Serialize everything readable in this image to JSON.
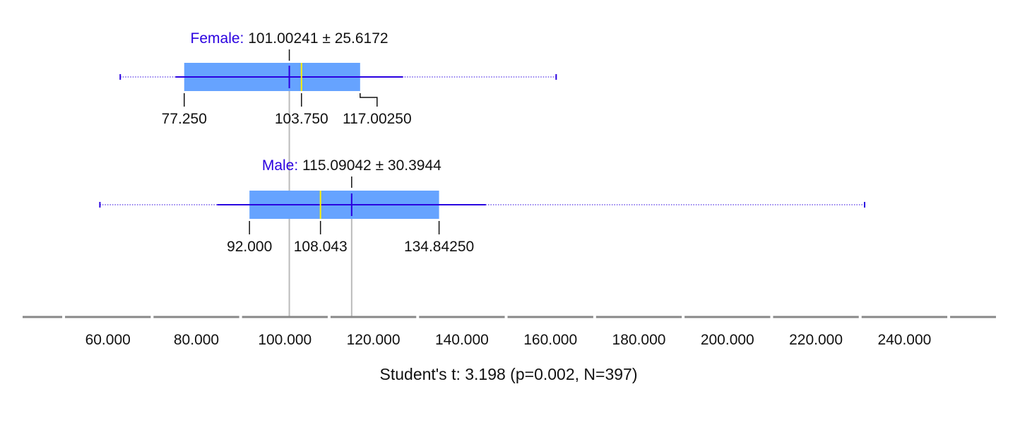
{
  "chart_data": {
    "type": "boxplot",
    "orientation": "horizontal",
    "colors": {
      "box": "#66A3FF",
      "whisker": "#2A00E0",
      "median": "#FFF000",
      "mean": "#2A00E0",
      "label": "#2A00E0",
      "mean_line": "#BBBBBB",
      "axis": "#888888",
      "text": "#111111"
    },
    "groups": [
      {
        "name": "Female:",
        "mean_sd_text": "101.00241 ± 25.6172",
        "mean": 101.00241,
        "median": 103.75,
        "q1": 77.25,
        "q3": 117.0025,
        "whisker_low": 75.3,
        "whisker_high": 126.7,
        "min": 62.8,
        "max": 161.3,
        "q1_label": "77.250",
        "median_label": "103.750",
        "q3_label": "117.00250"
      },
      {
        "name": "Male:",
        "mean_sd_text": "115.09042 ± 30.3944",
        "mean": 115.09042,
        "median": 108.043,
        "q1": 92.0,
        "q3": 134.8425,
        "whisker_low": 84.7,
        "whisker_high": 145.4,
        "min": 58.2,
        "max": 231.0,
        "q1_label": "92.000",
        "median_label": "108.043",
        "q3_label": "134.84250"
      }
    ],
    "x_ticks": [
      "60.000",
      "80.000",
      "100.000",
      "120.000",
      "140.000",
      "160.000",
      "180.000",
      "200.000",
      "220.000",
      "240.000"
    ],
    "x_tick_values": [
      60,
      80,
      100,
      120,
      140,
      160,
      180,
      200,
      220,
      240
    ],
    "xlim": [
      40,
      260
    ],
    "statistic": "Student's t: 3.198 (p=0.002, N=397)"
  }
}
